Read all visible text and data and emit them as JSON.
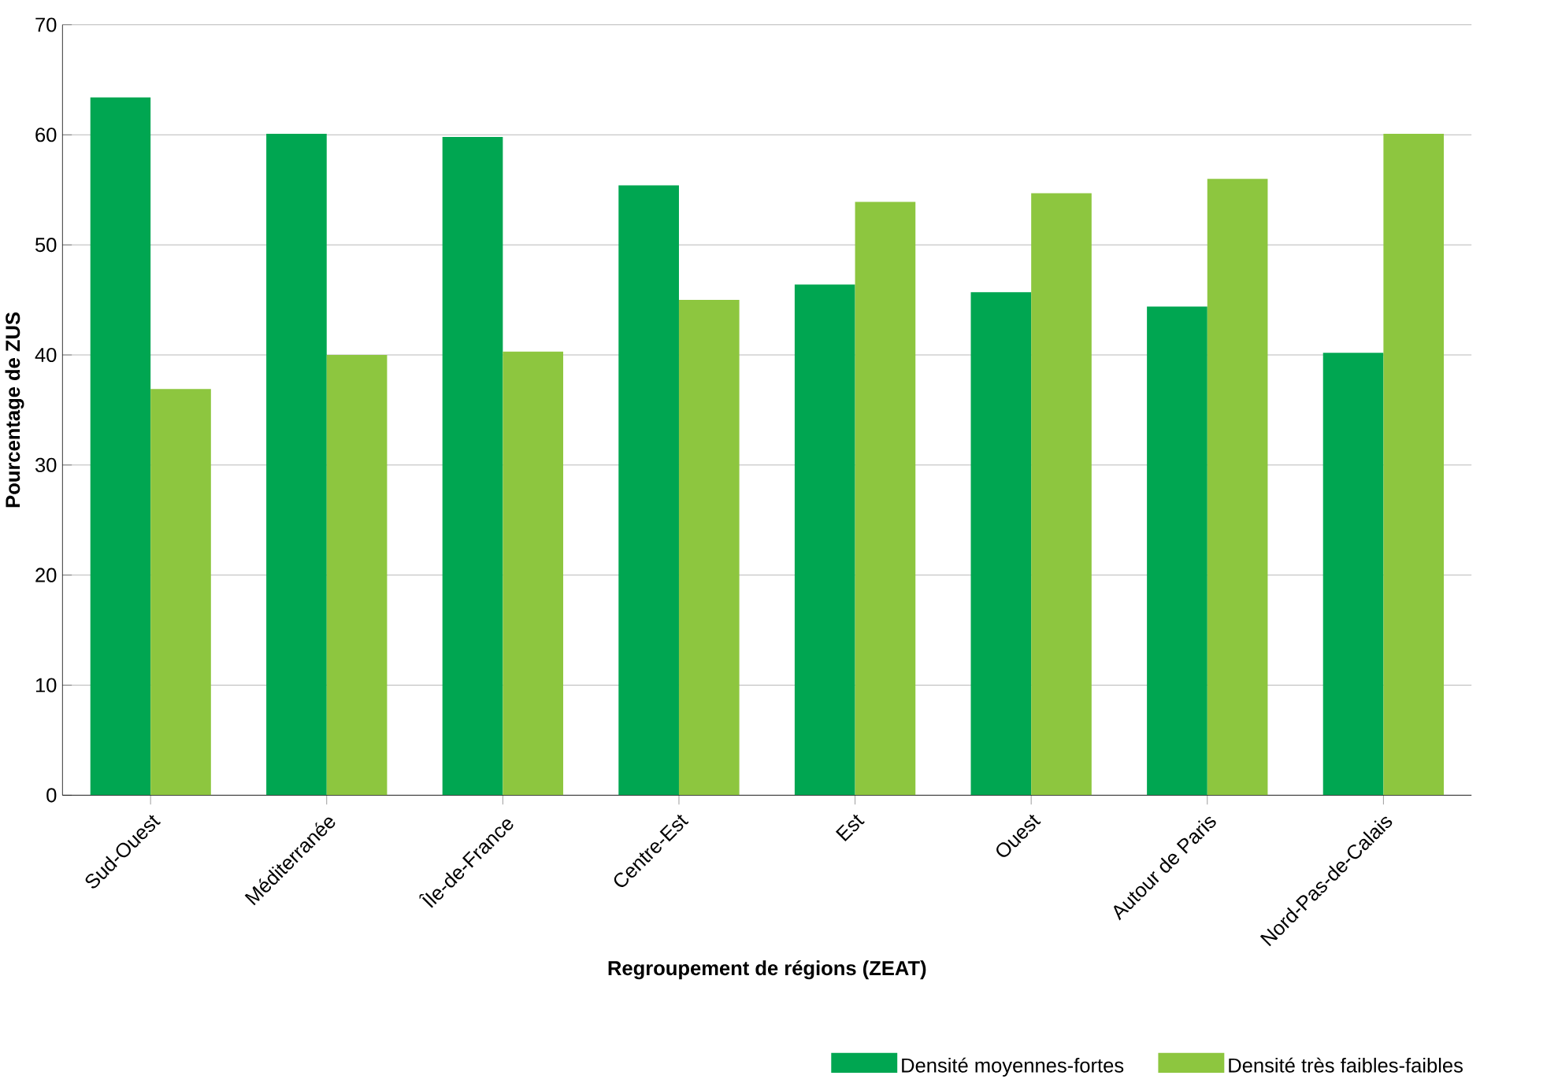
{
  "chart_data": {
    "type": "bar",
    "xlabel": "Regroupement de régions (ZEAT)",
    "ylabel": "Pourcentage de ZUS",
    "categories": [
      "Sud-Ouest",
      "Méditerranée",
      "Île-de-France",
      "Centre-Est",
      "Est",
      "Ouest",
      "Autour de Paris",
      "Nord-Pas-de-Calais"
    ],
    "series": [
      {
        "name": "Densité moyennes-fortes",
        "color": "#00a651",
        "values": [
          63.4,
          60.1,
          59.8,
          55.4,
          46.4,
          45.7,
          44.4,
          40.2
        ]
      },
      {
        "name": "Densité très faibles-faibles",
        "color": "#8dc63f",
        "values": [
          36.9,
          40.0,
          40.3,
          45.0,
          53.9,
          54.7,
          56.0,
          60.1
        ]
      }
    ],
    "ylim": [
      0,
      70
    ],
    "yticks": [
      0,
      10,
      20,
      30,
      40,
      50,
      60,
      70
    ],
    "grid": "y",
    "legend": "bottom"
  }
}
